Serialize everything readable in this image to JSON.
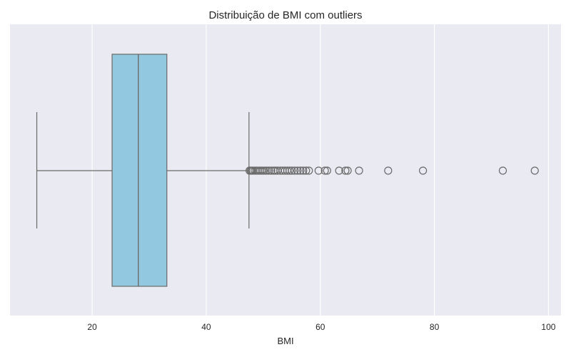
{
  "chart_data": {
    "type": "box",
    "title": "Distribuição de BMI com outliers",
    "xlabel": "BMI",
    "ylabel": "",
    "xlim": [
      5.6,
      102.2
    ],
    "xticks": [
      20,
      40,
      60,
      80,
      100
    ],
    "grid": true,
    "orientation": "horizontal",
    "box": {
      "whisker_low": 10.3,
      "q1": 23.5,
      "median": 28.1,
      "q3": 33.1,
      "whisker_high": 47.5
    },
    "outliers": [
      47.6,
      47.8,
      48.0,
      48.2,
      48.5,
      48.8,
      49.1,
      49.4,
      49.7,
      50.0,
      50.3,
      50.6,
      51.0,
      51.4,
      51.8,
      52.1,
      52.5,
      53.0,
      53.4,
      53.8,
      54.2,
      54.6,
      55.0,
      55.5,
      56.0,
      56.5,
      57.0,
      57.5,
      58.0,
      59.7,
      60.8,
      61.2,
      63.3,
      64.4,
      64.8,
      66.8,
      71.9,
      78.0,
      92.0,
      97.6
    ],
    "colors": {
      "box_fill": "#92c9e0",
      "plot_bg": "#eaeaf2",
      "grid": "#ffffff",
      "line": "#6a6a6a"
    }
  }
}
